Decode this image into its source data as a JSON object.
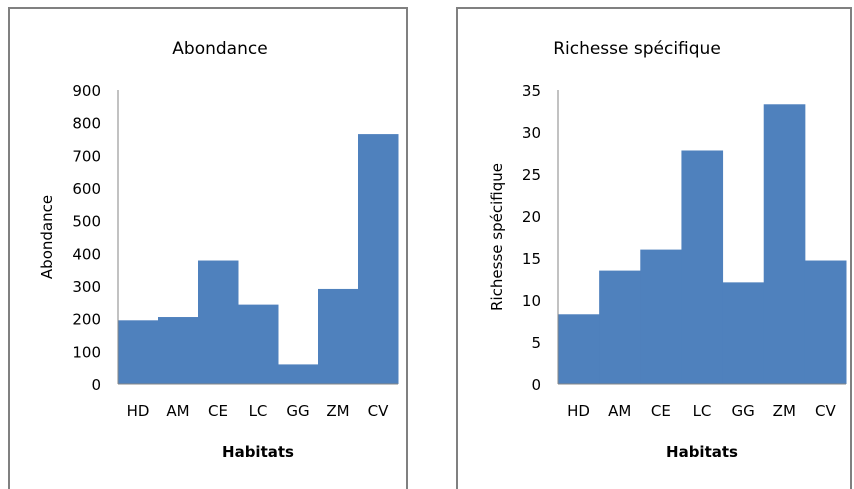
{
  "chart_data": [
    {
      "type": "bar",
      "title": "Abondance",
      "xlabel": "Habitats",
      "ylabel": "Abondance",
      "categories": [
        "HD",
        "AM",
        "CE",
        "LC",
        "GG",
        "ZM",
        "CV"
      ],
      "values": [
        195,
        205,
        378,
        243,
        60,
        291,
        765
      ],
      "ylim": [
        0,
        900
      ],
      "yticks": [
        "0",
        "100",
        "200",
        "300",
        "400",
        "500",
        "600",
        "700",
        "800",
        "900"
      ],
      "bar_color": "#4f81bd",
      "grid": false,
      "legend": "none"
    },
    {
      "type": "bar",
      "title": "Richesse spécifique",
      "xlabel": "Habitats",
      "ylabel": "Richesse spécifique",
      "categories": [
        "HD",
        "AM",
        "CE",
        "LC",
        "GG",
        "ZM",
        "CV"
      ],
      "values": [
        8.3,
        13.5,
        16,
        27.8,
        12.1,
        33.3,
        14.7
      ],
      "ylim": [
        0,
        35
      ],
      "yticks": [
        "0",
        "5",
        "10",
        "15",
        "20",
        "25",
        "30",
        "35"
      ],
      "bar_color": "#4f81bd",
      "grid": false,
      "legend": "none"
    }
  ]
}
